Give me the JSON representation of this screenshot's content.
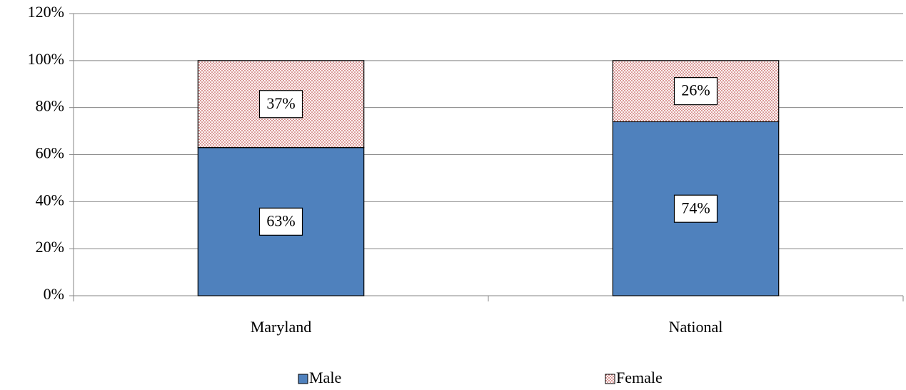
{
  "chart_data": {
    "type": "stacked-bar",
    "categories": [
      "Maryland",
      "National"
    ],
    "series": [
      {
        "name": "Male",
        "color": "#4f81bd",
        "values": [
          63,
          74
        ],
        "value_labels": [
          "63%",
          "74%"
        ]
      },
      {
        "name": "Female",
        "color": "#c0504d",
        "pattern": "dotted",
        "values": [
          37,
          26
        ],
        "value_labels": [
          "37%",
          "26%"
        ]
      }
    ],
    "ylim": [
      0,
      120
    ],
    "yticks": [
      {
        "value": 0,
        "label": "0%"
      },
      {
        "value": 20,
        "label": "20%"
      },
      {
        "value": 40,
        "label": "40%"
      },
      {
        "value": 60,
        "label": "60%"
      },
      {
        "value": 80,
        "label": "80%"
      },
      {
        "value": 100,
        "label": "100%"
      },
      {
        "value": 120,
        "label": "120%"
      }
    ],
    "grid": true,
    "legend": "bottom"
  }
}
